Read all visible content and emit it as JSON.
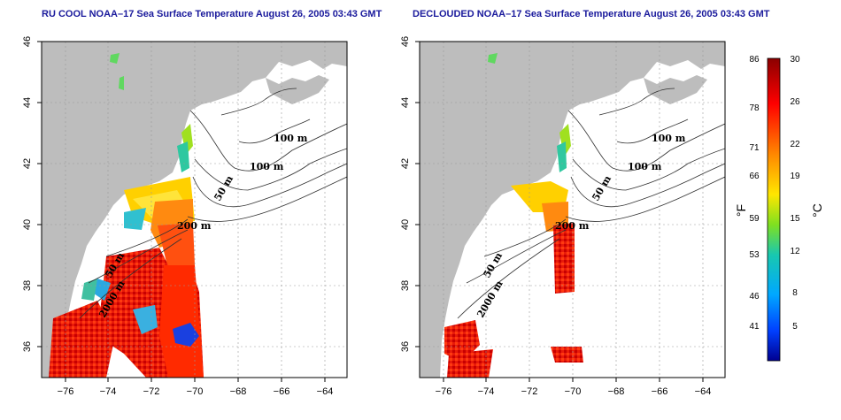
{
  "panels": [
    {
      "title": "RU COOL NOAA–17 Sea Surface Temperature August 26, 2005 03:43 GMT"
    },
    {
      "title": "DECLOUDED NOAA–17 Sea Surface Temperature August 26, 2005 03:43 GMT"
    }
  ],
  "axes": {
    "x_ticks": [
      "−76",
      "−74",
      "−72",
      "−70",
      "−68",
      "−66",
      "−64"
    ],
    "y_ticks": [
      "46",
      "44",
      "42",
      "40",
      "38",
      "36"
    ]
  },
  "contours": {
    "left": [
      "100 m",
      "100 m",
      "50 m",
      "200 m",
      "50 m",
      "2000 m"
    ],
    "right": [
      "100 m",
      "100 m",
      "50 m",
      "200 m",
      "50 m",
      "2000 m"
    ]
  },
  "colorbar": {
    "fahrenheit": [
      "86",
      "78",
      "71",
      "66",
      "59",
      "53",
      "46",
      "41"
    ],
    "celsius": [
      "30",
      "26",
      "22",
      "19",
      "15",
      "12",
      "8",
      "5"
    ],
    "f_unit": "°F",
    "c_unit": "°C",
    "colors": [
      "#ff0000",
      "#ff8a00",
      "#ffe600",
      "#9bea14",
      "#1ec8a0",
      "#00b4ff",
      "#0050ff",
      "#0000b0"
    ]
  },
  "colors": {
    "land": "#bdbdbd",
    "sea": "#ffffff",
    "title": "#1a1a9c"
  }
}
